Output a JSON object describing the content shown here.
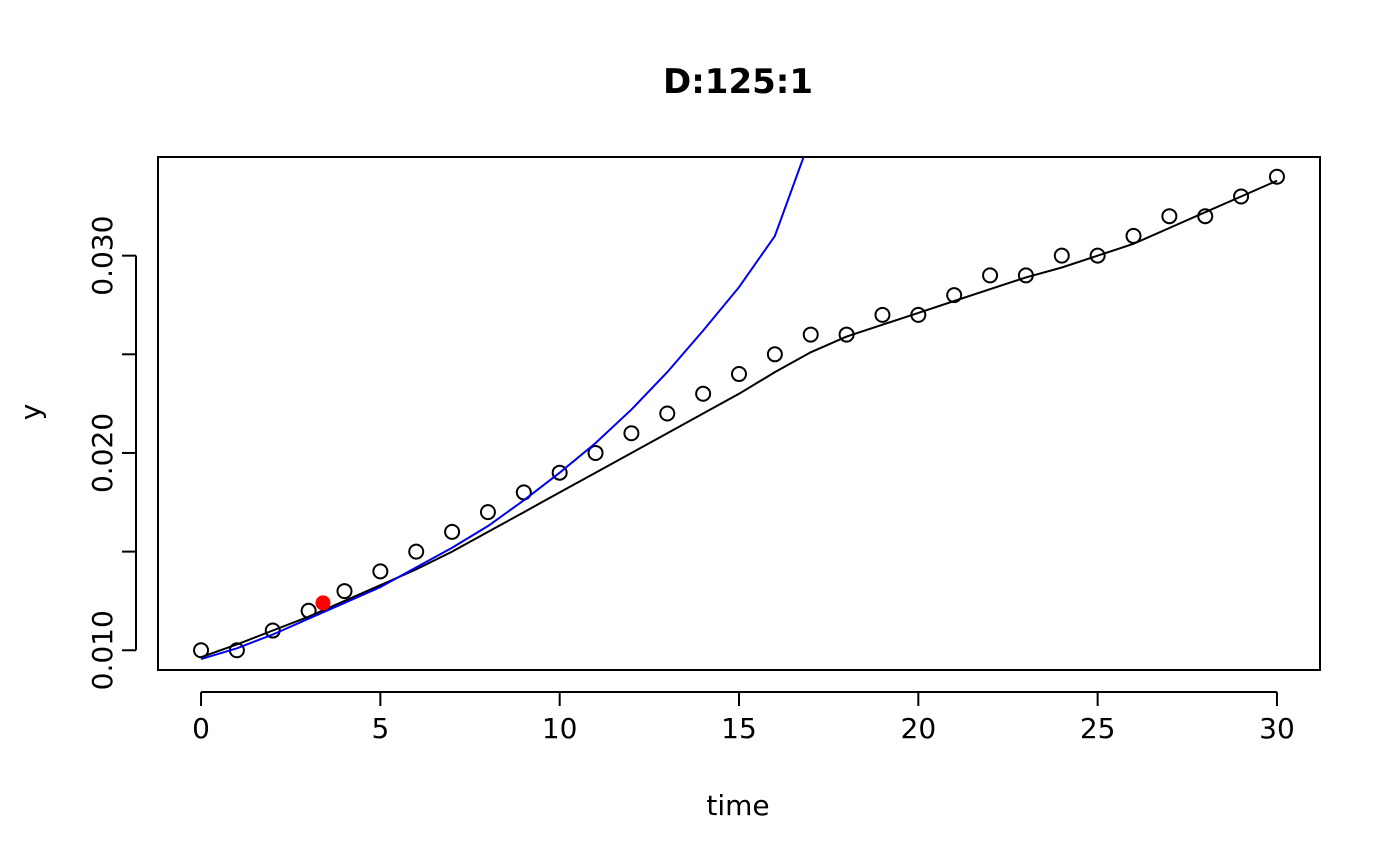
{
  "chart_data": {
    "type": "scatter",
    "title": "D:125:1",
    "xlabel": "time",
    "ylabel": "y",
    "xlim": [
      -1.2,
      31.2
    ],
    "ylim": [
      0.009,
      0.035
    ],
    "x_ticks": [
      0,
      5,
      10,
      15,
      20,
      25,
      30
    ],
    "x_tick_labels": [
      "0",
      "5",
      "10",
      "15",
      "20",
      "25",
      "30"
    ],
    "y_ticks": [
      0.01,
      0.015,
      0.02,
      0.025,
      0.03
    ],
    "y_tick_labels": [
      "0.010",
      "",
      "0.020",
      "",
      "0.030"
    ],
    "grid": false,
    "series": [
      {
        "kind": "points",
        "marker": "open-circle",
        "color": "#000000",
        "x": [
          0,
          1,
          2,
          3,
          4,
          5,
          6,
          7,
          8,
          9,
          10,
          11,
          12,
          13,
          14,
          15,
          16,
          17,
          18,
          19,
          20,
          21,
          22,
          23,
          24,
          25,
          26,
          27,
          28,
          29,
          30
        ],
        "y": [
          0.01,
          0.01,
          0.011,
          0.012,
          0.013,
          0.014,
          0.015,
          0.016,
          0.017,
          0.018,
          0.019,
          0.02,
          0.021,
          0.022,
          0.023,
          0.024,
          0.025,
          0.026,
          0.026,
          0.027,
          0.027,
          0.028,
          0.029,
          0.029,
          0.03,
          0.03,
          0.031,
          0.032,
          0.032,
          0.033,
          0.034
        ]
      },
      {
        "kind": "line",
        "color": "#000000",
        "x": [
          0,
          1,
          2,
          3,
          4,
          5,
          6,
          7,
          8,
          9,
          10,
          11,
          12,
          13,
          14,
          15,
          16,
          17,
          18,
          19,
          20,
          21,
          22,
          23,
          24,
          25,
          26,
          27,
          28,
          29,
          30
        ],
        "y": [
          0.00965,
          0.0103,
          0.011,
          0.0117,
          0.0125,
          0.0133,
          0.0141,
          0.015,
          0.016,
          0.017,
          0.018,
          0.019,
          0.02,
          0.021,
          0.022,
          0.023,
          0.0241,
          0.0251,
          0.0259,
          0.0265,
          0.0271,
          0.0277,
          0.0283,
          0.0289,
          0.0294,
          0.03,
          0.0306,
          0.0314,
          0.0322,
          0.033,
          0.0338
        ]
      },
      {
        "kind": "line",
        "color": "#0000ee",
        "x": [
          0,
          1,
          2,
          3,
          4,
          5,
          6,
          7,
          8,
          9,
          10,
          11,
          12,
          13,
          14,
          15,
          16,
          16.8
        ],
        "y": [
          0.00955,
          0.0101,
          0.0108,
          0.0116,
          0.0124,
          0.0132,
          0.0142,
          0.0152,
          0.0163,
          0.0176,
          0.019,
          0.0205,
          0.0222,
          0.0241,
          0.0262,
          0.0284,
          0.031,
          0.035
        ]
      },
      {
        "kind": "points",
        "marker": "filled-circle",
        "color": "#ff0000",
        "x": [
          3.4
        ],
        "y": [
          0.0124
        ]
      }
    ]
  }
}
